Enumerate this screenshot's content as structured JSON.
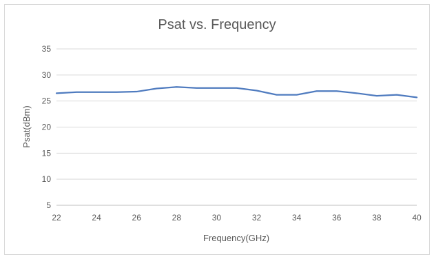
{
  "chart_data": {
    "type": "line",
    "title": "Psat vs. Frequency",
    "xlabel": "Frequency(GHz)",
    "ylabel": "Psat(dBm)",
    "xlim": [
      22,
      40
    ],
    "ylim": [
      5,
      35
    ],
    "x_ticks": [
      22,
      24,
      26,
      28,
      30,
      32,
      34,
      36,
      38,
      40
    ],
    "y_ticks": [
      5,
      10,
      15,
      20,
      25,
      30,
      35
    ],
    "grid": "horizontal",
    "legend": "none",
    "series": [
      {
        "color": "#4f7bbf",
        "x": [
          22,
          23,
          24,
          25,
          26,
          27,
          28,
          29,
          30,
          31,
          32,
          33,
          34,
          35,
          36,
          37,
          38,
          39,
          40
        ],
        "y": [
          26.5,
          26.7,
          26.7,
          26.7,
          26.8,
          27.4,
          27.7,
          27.5,
          27.5,
          27.5,
          27.0,
          26.2,
          26.2,
          26.9,
          26.9,
          26.5,
          26.0,
          26.2,
          25.7
        ]
      }
    ]
  }
}
